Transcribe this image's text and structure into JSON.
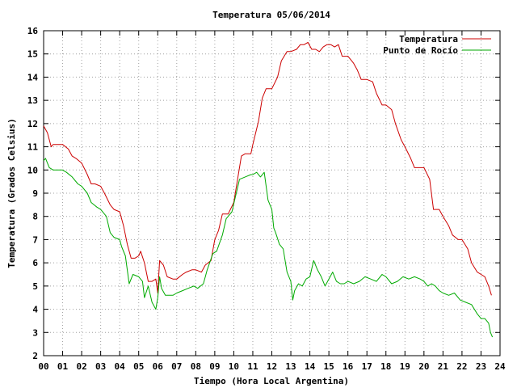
{
  "chart_data": {
    "type": "line",
    "title": "Temperatura 05/06/2014",
    "xlabel": "Tiempo (Hora Local Argentina)",
    "ylabel": "Temperatura (Grados Celsius)",
    "xlim": [
      0,
      24
    ],
    "ylim": [
      2,
      16
    ],
    "xticks": [
      "00",
      "01",
      "02",
      "03",
      "04",
      "05",
      "06",
      "07",
      "08",
      "09",
      "10",
      "11",
      "12",
      "13",
      "14",
      "15",
      "16",
      "17",
      "18",
      "19",
      "20",
      "21",
      "22",
      "23",
      "24"
    ],
    "yticks": [
      2,
      3,
      4,
      5,
      6,
      7,
      8,
      9,
      10,
      11,
      12,
      13,
      14,
      15,
      16
    ],
    "grid": true,
    "legend_position": "top-right",
    "series": [
      {
        "name": "Temperatura",
        "color": "#cc0000",
        "x": [
          0,
          0.2,
          0.4,
          0.5,
          0.8,
          1.0,
          1.3,
          1.5,
          1.7,
          2.0,
          2.3,
          2.5,
          2.7,
          3.0,
          3.2,
          3.5,
          3.7,
          4.0,
          4.2,
          4.4,
          4.6,
          4.8,
          5.0,
          5.1,
          5.3,
          5.5,
          5.7,
          5.9,
          6.0,
          6.1,
          6.3,
          6.5,
          6.8,
          7.0,
          7.3,
          7.5,
          7.8,
          8.0,
          8.3,
          8.5,
          8.8,
          9.0,
          9.2,
          9.4,
          9.7,
          10.0,
          10.2,
          10.4,
          10.6,
          10.9,
          11.0,
          11.3,
          11.5,
          11.7,
          12.0,
          12.3,
          12.5,
          12.8,
          13.0,
          13.3,
          13.5,
          13.7,
          13.9,
          14.1,
          14.3,
          14.5,
          14.7,
          14.9,
          15.1,
          15.3,
          15.5,
          15.7,
          16.0,
          16.3,
          16.5,
          16.7,
          17.0,
          17.3,
          17.5,
          17.8,
          18.0,
          18.3,
          18.5,
          18.8,
          19.0,
          19.3,
          19.5,
          19.8,
          20.0,
          20.3,
          20.5,
          20.8,
          21.0,
          21.3,
          21.5,
          21.8,
          22.0,
          22.3,
          22.5,
          22.8,
          23.0,
          23.2,
          23.4,
          23.55
        ],
        "values": [
          11.9,
          11.6,
          11.0,
          11.1,
          11.1,
          11.1,
          10.9,
          10.6,
          10.5,
          10.3,
          9.8,
          9.4,
          9.4,
          9.3,
          9.0,
          8.5,
          8.3,
          8.2,
          7.6,
          6.8,
          6.2,
          6.2,
          6.3,
          6.5,
          6.0,
          5.2,
          5.2,
          5.3,
          4.7,
          6.1,
          5.9,
          5.4,
          5.3,
          5.3,
          5.5,
          5.6,
          5.7,
          5.7,
          5.6,
          5.9,
          6.1,
          7.0,
          7.4,
          8.1,
          8.1,
          8.6,
          9.6,
          10.6,
          10.7,
          10.7,
          11.1,
          12.1,
          13.1,
          13.5,
          13.5,
          14.0,
          14.7,
          15.1,
          15.1,
          15.2,
          15.4,
          15.4,
          15.5,
          15.2,
          15.2,
          15.1,
          15.3,
          15.4,
          15.4,
          15.3,
          15.4,
          14.9,
          14.9,
          14.6,
          14.3,
          13.9,
          13.9,
          13.8,
          13.3,
          12.8,
          12.8,
          12.6,
          12.0,
          11.3,
          11.0,
          10.5,
          10.1,
          10.1,
          10.1,
          9.6,
          8.3,
          8.3,
          8.0,
          7.6,
          7.2,
          7.0,
          7.0,
          6.6,
          6.0,
          5.6,
          5.5,
          5.4,
          5.0,
          4.6
        ]
      },
      {
        "name": "Punto de Rocío",
        "color": "#00aa00",
        "x": [
          0,
          0.1,
          0.2,
          0.3,
          0.5,
          0.8,
          1.0,
          1.2,
          1.5,
          1.8,
          2.0,
          2.3,
          2.5,
          2.8,
          3.0,
          3.3,
          3.5,
          3.7,
          4.0,
          4.1,
          4.3,
          4.5,
          4.7,
          5.0,
          5.2,
          5.3,
          5.5,
          5.7,
          5.9,
          6.0,
          6.1,
          6.2,
          6.4,
          6.6,
          6.8,
          7.0,
          7.3,
          7.6,
          7.9,
          8.1,
          8.4,
          8.6,
          8.9,
          9.1,
          9.4,
          9.6,
          9.9,
          10.1,
          10.3,
          10.6,
          10.9,
          11.0,
          11.2,
          11.4,
          11.6,
          11.8,
          12.0,
          12.1,
          12.2,
          12.4,
          12.6,
          12.8,
          13.0,
          13.1,
          13.2,
          13.4,
          13.6,
          13.8,
          14.0,
          14.2,
          14.4,
          14.6,
          14.8,
          15.0,
          15.2,
          15.4,
          15.6,
          15.8,
          16.0,
          16.3,
          16.6,
          16.9,
          17.2,
          17.5,
          17.8,
          18.0,
          18.3,
          18.6,
          18.9,
          19.2,
          19.5,
          19.8,
          20.0,
          20.2,
          20.4,
          20.6,
          20.8,
          21.0,
          21.3,
          21.6,
          21.9,
          22.2,
          22.5,
          22.8,
          23.0,
          23.2,
          23.4,
          23.5,
          23.6
        ],
        "values": [
          10.4,
          10.5,
          10.3,
          10.1,
          10.0,
          10.0,
          10.0,
          9.9,
          9.7,
          9.4,
          9.3,
          9.0,
          8.6,
          8.4,
          8.3,
          8.0,
          7.3,
          7.1,
          7.0,
          6.7,
          6.3,
          5.1,
          5.5,
          5.4,
          5.2,
          4.5,
          5.0,
          4.3,
          4.0,
          4.5,
          5.4,
          4.9,
          4.6,
          4.6,
          4.6,
          4.7,
          4.8,
          4.9,
          5.0,
          4.9,
          5.1,
          5.7,
          6.4,
          6.5,
          7.2,
          7.9,
          8.2,
          8.9,
          9.6,
          9.7,
          9.8,
          9.8,
          9.9,
          9.7,
          9.9,
          8.7,
          8.3,
          7.5,
          7.3,
          6.8,
          6.6,
          5.6,
          5.2,
          4.4,
          4.8,
          5.1,
          5.0,
          5.3,
          5.4,
          6.1,
          5.7,
          5.4,
          5.0,
          5.3,
          5.6,
          5.2,
          5.1,
          5.1,
          5.2,
          5.1,
          5.2,
          5.4,
          5.3,
          5.2,
          5.5,
          5.4,
          5.1,
          5.2,
          5.4,
          5.3,
          5.4,
          5.3,
          5.2,
          5.0,
          5.1,
          5.0,
          4.8,
          4.7,
          4.6,
          4.7,
          4.4,
          4.3,
          4.2,
          3.8,
          3.6,
          3.6,
          3.4,
          3.0,
          2.8
        ]
      }
    ]
  }
}
